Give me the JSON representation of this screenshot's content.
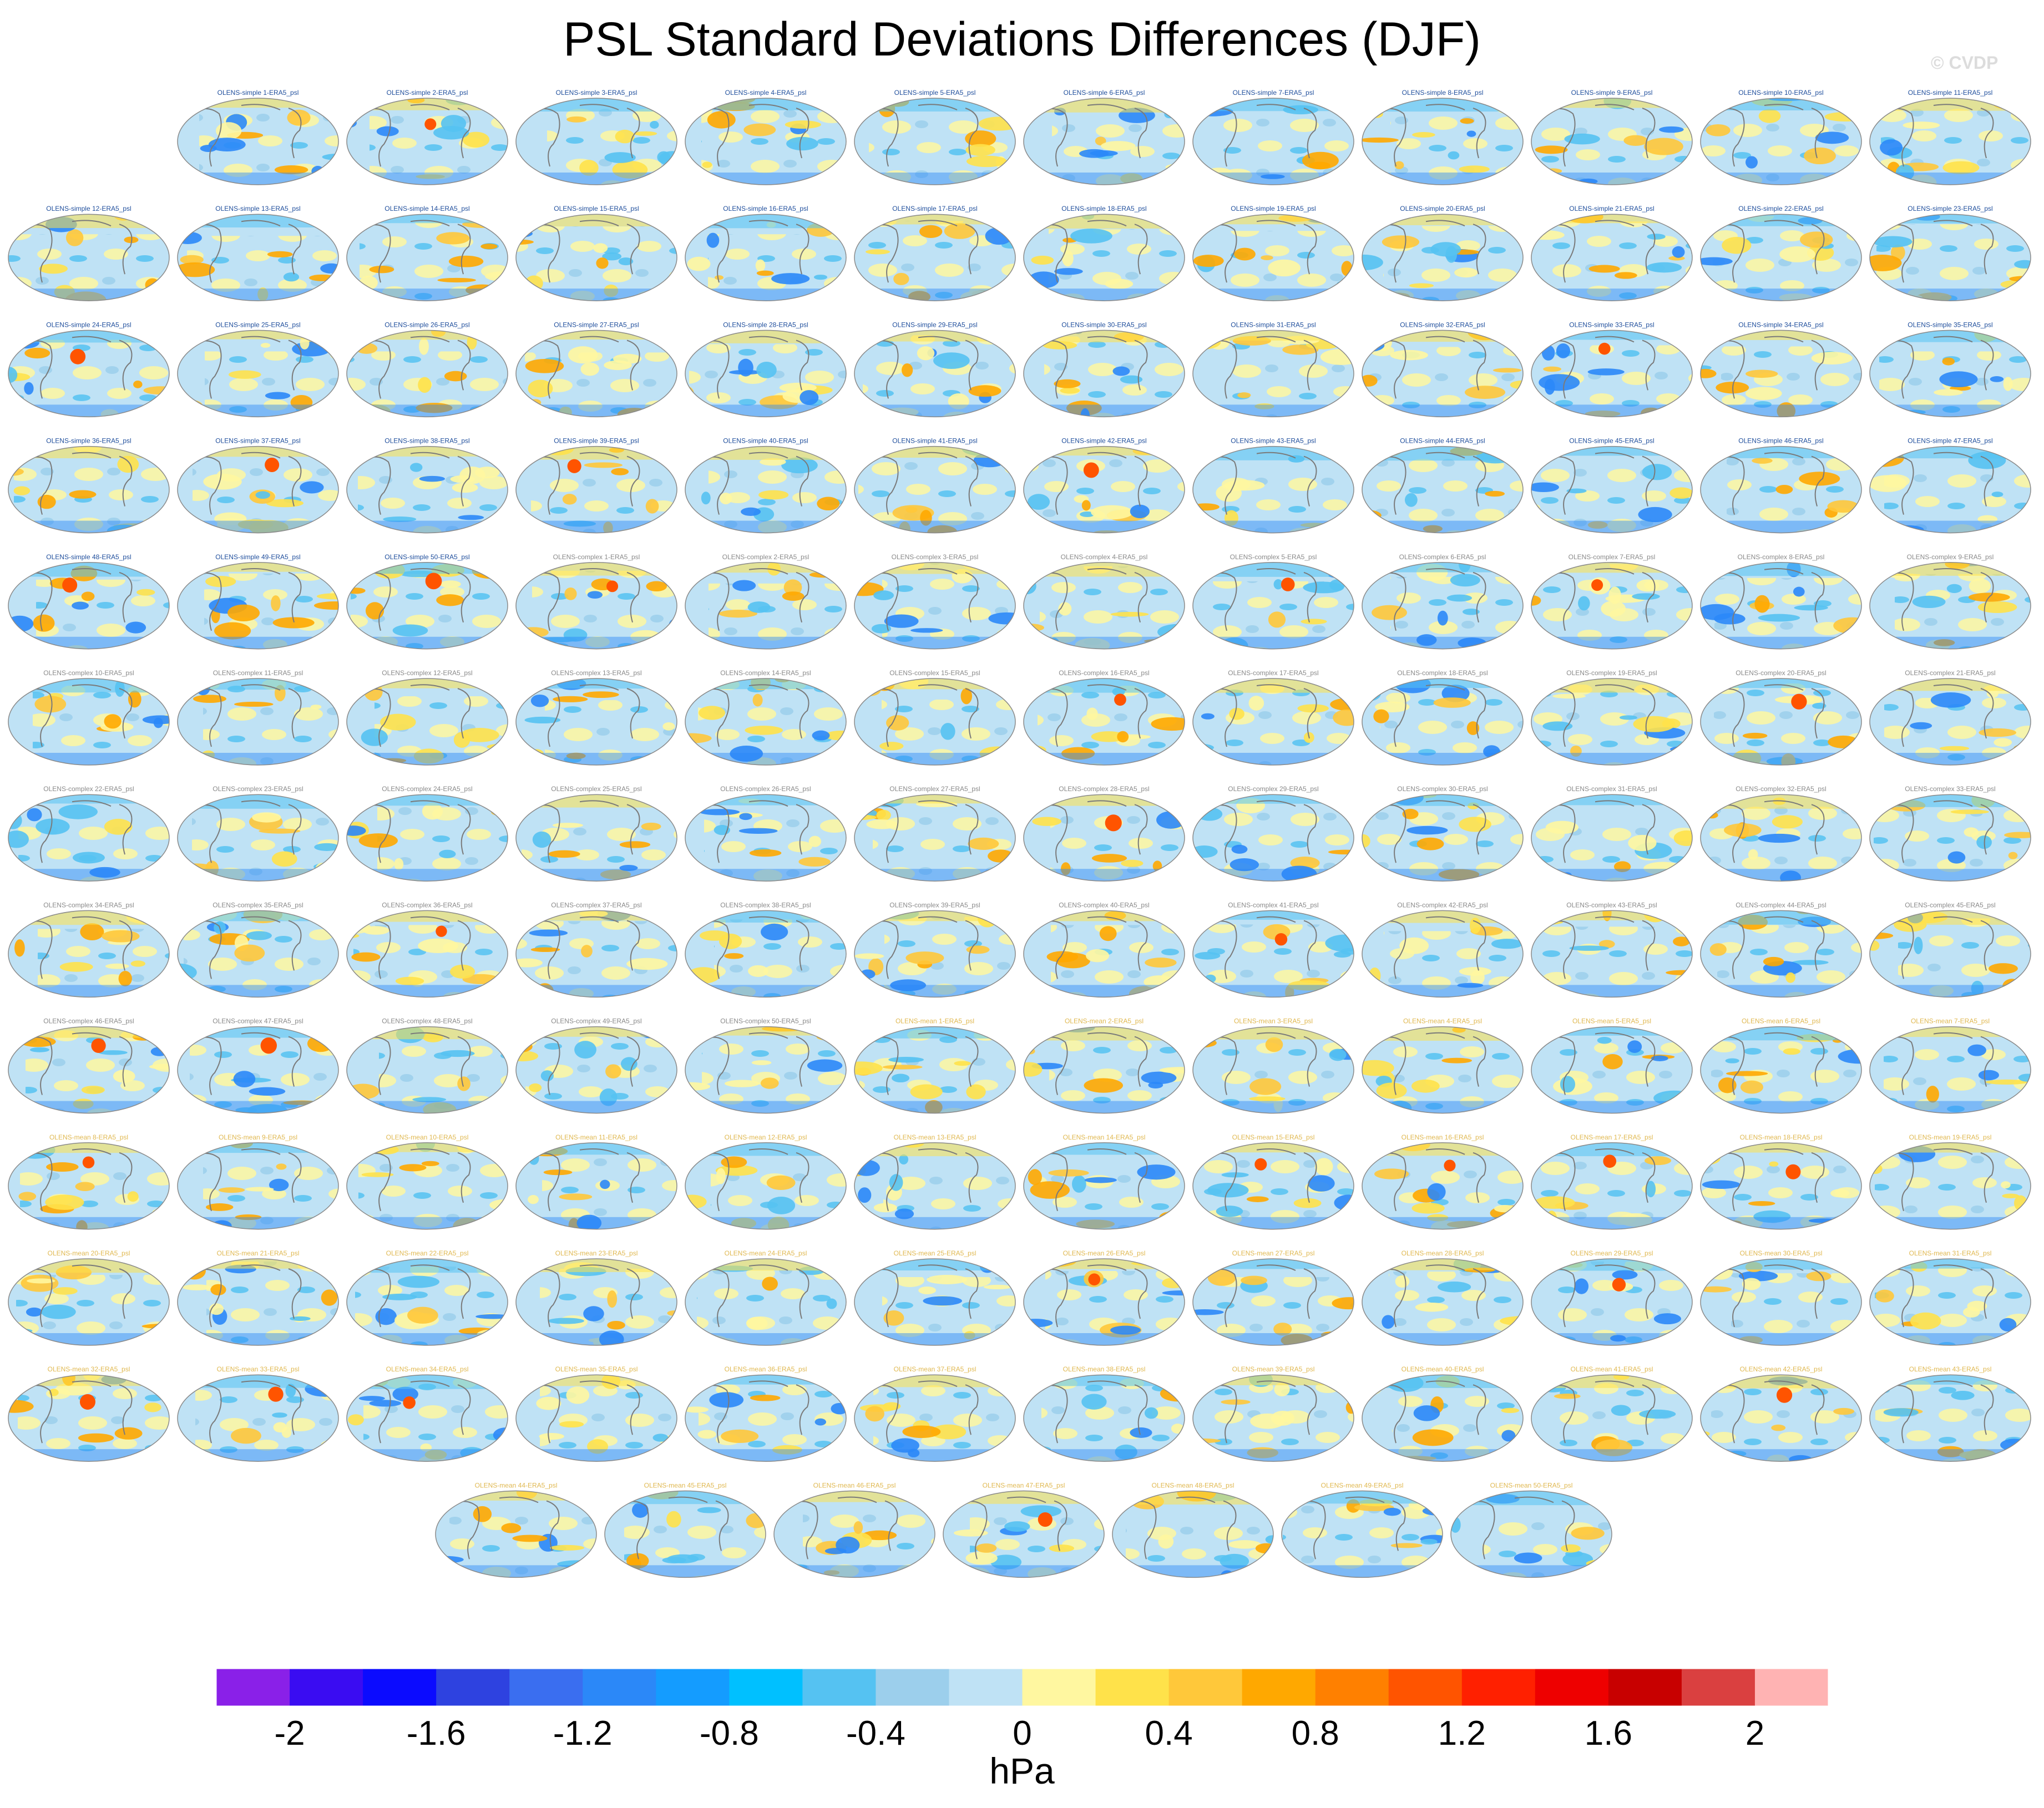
{
  "title": "PSL Standard Deviations Differences (DJF)",
  "watermark": "© CVDP",
  "chart_data": {
    "type": "heatmap",
    "title": "PSL Standard Deviations Differences (DJF)",
    "description_unit": "hPa",
    "panel_count": 150,
    "panel_title_pattern": "OLENS-{group} {n}-ERA5_psl",
    "groups": [
      {
        "name": "simple",
        "count": 50,
        "title_color": "#1f4e9c"
      },
      {
        "name": "complex",
        "count": 50,
        "title_color": "#8a8a8a"
      },
      {
        "name": "mean",
        "count": 50,
        "title_color": "#e0b850"
      }
    ],
    "layout_rows": [
      11,
      12,
      12,
      12,
      12,
      12,
      12,
      12,
      12,
      12,
      12,
      12,
      7
    ],
    "colorbar": {
      "label": "hPa",
      "tick_labels": [
        "-2",
        "-1.6",
        "-1.2",
        "-0.8",
        "-0.4",
        "0",
        "0.4",
        "0.8",
        "1.2",
        "1.6",
        "2"
      ],
      "levels": [
        -2,
        -1.8,
        -1.6,
        -1.4,
        -1.2,
        -1.0,
        -0.8,
        -0.6,
        -0.4,
        -0.2,
        0,
        0.2,
        0.4,
        0.6,
        0.8,
        1.0,
        1.2,
        1.4,
        1.6,
        1.8,
        2
      ],
      "colors": [
        "#8a20e8",
        "#3a0cf2",
        "#0b0bff",
        "#2e42e0",
        "#3a6ef0",
        "#2b88f8",
        "#149cff",
        "#00c0ff",
        "#55c2f2",
        "#9ccfec",
        "#bfe2f5",
        "#fff7a0",
        "#ffe24a",
        "#ffc83a",
        "#ffa800",
        "#ff8000",
        "#ff5400",
        "#ff2000",
        "#ee0000",
        "#c80000",
        "#da4040",
        "#ffb3b3"
      ]
    }
  }
}
